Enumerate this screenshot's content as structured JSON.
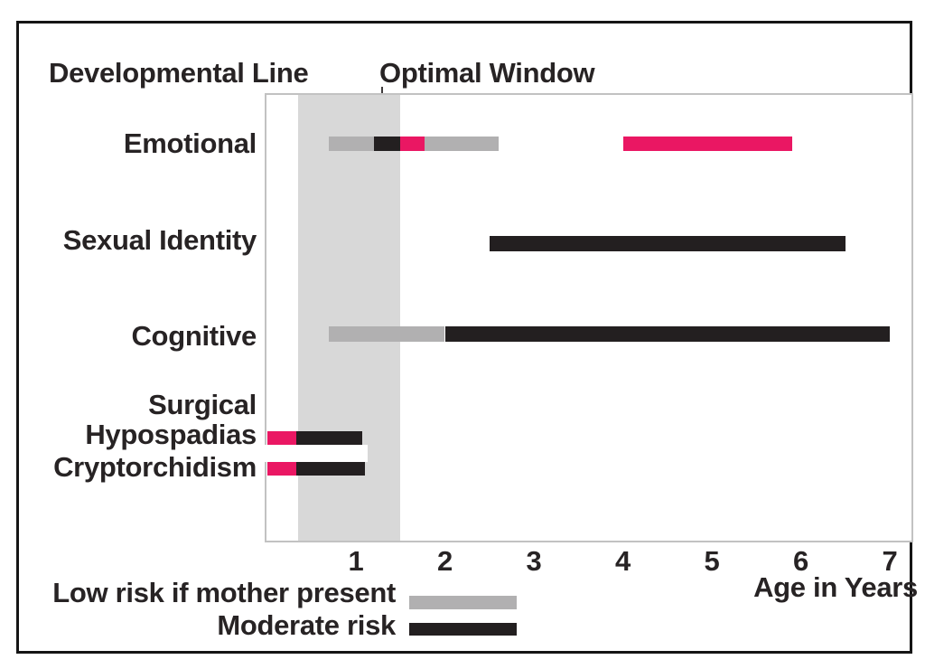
{
  "chart": {
    "left_title": "Developmental Line",
    "window_title": "Optimal Window",
    "xlabel": "Age in Years"
  },
  "chart_data": {
    "type": "bar",
    "subtype": "horizontal-range-bars",
    "title_left": "Developmental Line",
    "xlabel": "Age in Years",
    "x_ticks": [
      1,
      2,
      3,
      4,
      5,
      6,
      7
    ],
    "xlim": [
      0,
      7.3
    ],
    "grid": false,
    "legend_position": "bottom-left",
    "optimal_window": {
      "label": "Optimal Window",
      "from": 0.35,
      "to": 1.5
    },
    "colors": {
      "low": "#b1b0b1",
      "moderate": "#231f20",
      "accent": "#ea1763",
      "window": "#d8d8d8"
    },
    "rows": [
      {
        "category": "Emotional",
        "segments": [
          {
            "from": 0.7,
            "to": 1.2,
            "risk": "low"
          },
          {
            "from": 1.2,
            "to": 1.5,
            "risk": "moderate"
          },
          {
            "from": 1.5,
            "to": 1.77,
            "risk": "accent"
          },
          {
            "from": 1.77,
            "to": 2.6,
            "risk": "low"
          },
          {
            "from": 4.0,
            "to": 5.9,
            "risk": "accent"
          }
        ]
      },
      {
        "category": "Sexual Identity",
        "segments": [
          {
            "from": 2.5,
            "to": 6.5,
            "risk": "moderate"
          }
        ]
      },
      {
        "category": "Cognitive",
        "segments": [
          {
            "from": 0.7,
            "to": 2.0,
            "risk": "low"
          },
          {
            "from": 2.0,
            "to": 7.0,
            "risk": "moderate"
          }
        ]
      },
      {
        "category": "Surgical",
        "segments": []
      },
      {
        "category": "Hypospadias",
        "segments": [
          {
            "from": 0,
            "to": 0.33,
            "risk": "accent"
          },
          {
            "from": 0.33,
            "to": 1.07,
            "risk": "moderate"
          }
        ]
      },
      {
        "category": "Cryptorchidism",
        "segments": [
          {
            "from": 0,
            "to": 0.33,
            "risk": "accent"
          },
          {
            "from": 0.33,
            "to": 1.1,
            "risk": "moderate"
          }
        ]
      }
    ],
    "legend": [
      {
        "label": "Low risk if mother present",
        "risk": "low"
      },
      {
        "label": "Moderate risk",
        "risk": "moderate"
      }
    ]
  }
}
